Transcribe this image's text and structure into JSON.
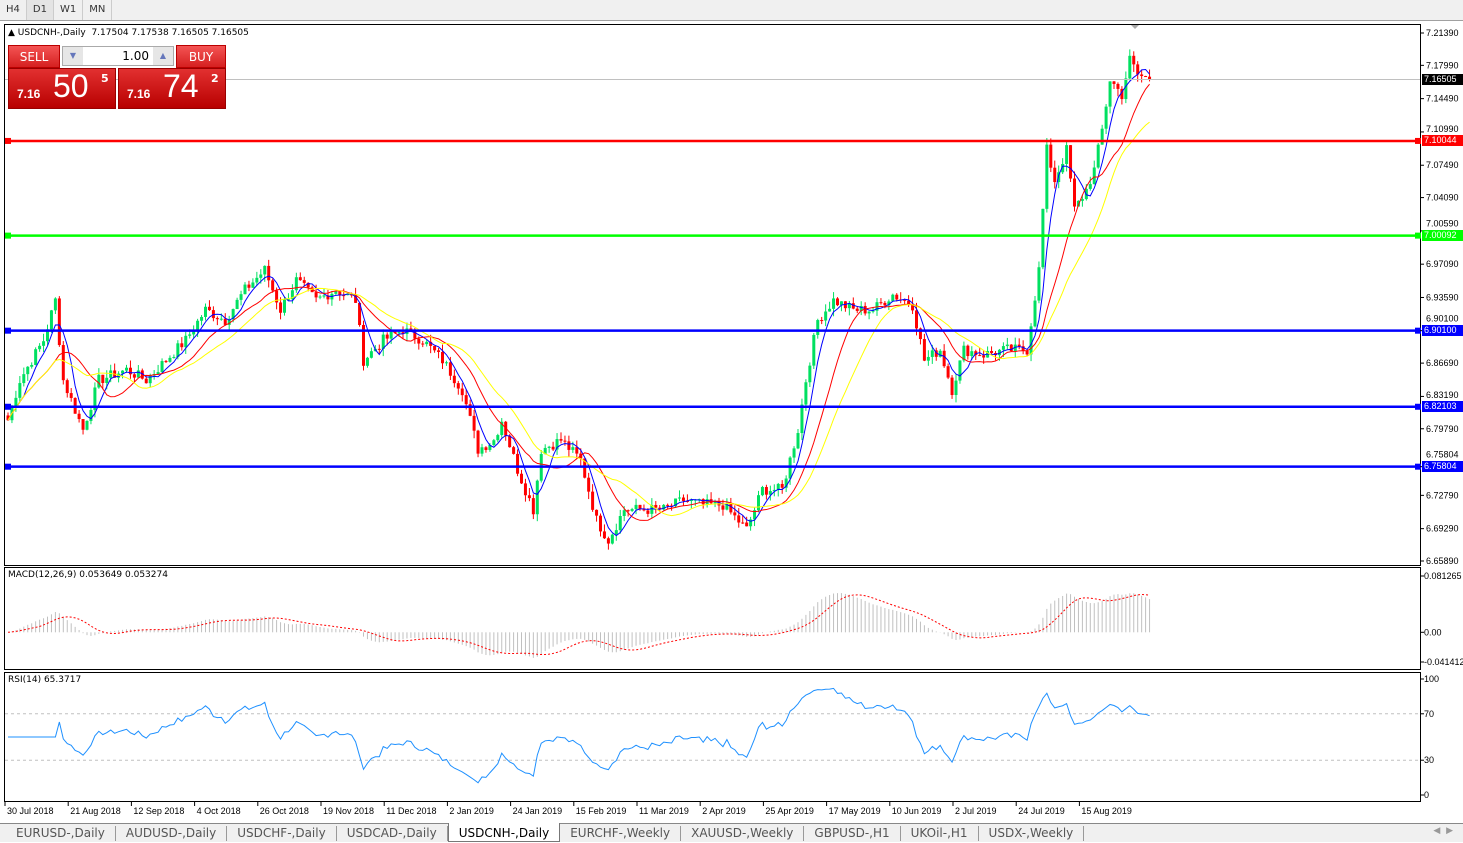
{
  "timeframes": [
    "H4",
    "D1",
    "W1",
    "MN"
  ],
  "selected_timeframe": "D1",
  "header": {
    "symbol": "USDCNH-,Daily",
    "ohlc": "7.17504 7.17538 7.16505 7.16505"
  },
  "trade_panel": {
    "sell_label": "SELL",
    "buy_label": "BUY",
    "lot": "1.00",
    "sell_price": {
      "prefix": "7.16",
      "big": "50",
      "sup": "5"
    },
    "buy_price": {
      "prefix": "7.16",
      "big": "74",
      "sup": "2"
    }
  },
  "price_axis": [
    "7.21390",
    "7.17990",
    "7.14490",
    "7.10990",
    "7.07490",
    "7.04090",
    "7.00590",
    "6.97090",
    "6.93590",
    "6.90100",
    "6.86690",
    "6.83190",
    "6.79790",
    "6.75804",
    "6.72790",
    "6.69290",
    "6.65890"
  ],
  "price_range": [
    6.6589,
    7.2139
  ],
  "current_price": "7.16505",
  "horizontal_lines": [
    {
      "price": "7.10044",
      "color": "#ff0000"
    },
    {
      "price": "7.00092",
      "color": "#00ff00"
    },
    {
      "price": "6.90100",
      "color": "#0000ff"
    },
    {
      "price": "6.82103",
      "color": "#0000ff"
    },
    {
      "price": "6.75804",
      "color": "#0000ff"
    }
  ],
  "colors": {
    "bull": "#00e060",
    "bear": "#ff0000",
    "ma_fast": "#0000ff",
    "ma_mid": "#ff0000",
    "ma_slow": "#ffff00",
    "macd_hist": "#c0c0c0",
    "macd_signal": "#ff0000",
    "rsi": "#1e90ff"
  },
  "moving_averages": [
    5,
    13,
    21
  ],
  "macd": {
    "label": "MACD(12,26,9) 0.053649 0.053274",
    "axis": [
      "0.081265",
      "0.00",
      "-0.041412"
    ],
    "range": [
      -0.041412,
      0.081265
    ]
  },
  "rsi": {
    "label": "RSI(14) 65.3717",
    "axis": [
      "100",
      "70",
      "30",
      "0"
    ],
    "levels": [
      70,
      30
    ]
  },
  "date_axis": [
    "30 Jul 2018",
    "21 Aug 2018",
    "12 Sep 2018",
    "4 Oct 2018",
    "26 Oct 2018",
    "19 Nov 2018",
    "11 Dec 2018",
    "2 Jan 2019",
    "24 Jan 2019",
    "15 Feb 2019",
    "11 Mar 2019",
    "2 Apr 2019",
    "25 Apr 2019",
    "17 May 2019",
    "10 Jun 2019",
    "2 Jul 2019",
    "24 Jul 2019",
    "15 Aug 2019"
  ],
  "chart_data": {
    "type": "candlestick",
    "bars": 290,
    "first_date": "30 Jul 2018",
    "close_anchors": [
      [
        0,
        6.807
      ],
      [
        3,
        6.849
      ],
      [
        9,
        6.891
      ],
      [
        12,
        6.933
      ],
      [
        14,
        6.849
      ],
      [
        19,
        6.797
      ],
      [
        23,
        6.849
      ],
      [
        30,
        6.86
      ],
      [
        35,
        6.849
      ],
      [
        40,
        6.87
      ],
      [
        45,
        6.891
      ],
      [
        50,
        6.923
      ],
      [
        55,
        6.912
      ],
      [
        60,
        6.944
      ],
      [
        65,
        6.965
      ],
      [
        69,
        6.923
      ],
      [
        73,
        6.954
      ],
      [
        78,
        6.933
      ],
      [
        83,
        6.944
      ],
      [
        88,
        6.933
      ],
      [
        90,
        6.87
      ],
      [
        95,
        6.891
      ],
      [
        100,
        6.902
      ],
      [
        105,
        6.891
      ],
      [
        110,
        6.87
      ],
      [
        115,
        6.839
      ],
      [
        119,
        6.776
      ],
      [
        123,
        6.786
      ],
      [
        125,
        6.807
      ],
      [
        129,
        6.755
      ],
      [
        133,
        6.713
      ],
      [
        135,
        6.776
      ],
      [
        140,
        6.786
      ],
      [
        145,
        6.765
      ],
      [
        149,
        6.702
      ],
      [
        152,
        6.681
      ],
      [
        156,
        6.713
      ],
      [
        161,
        6.713
      ],
      [
        166,
        6.713
      ],
      [
        171,
        6.723
      ],
      [
        176,
        6.718
      ],
      [
        181,
        6.718
      ],
      [
        187,
        6.692
      ],
      [
        191,
        6.734
      ],
      [
        196,
        6.734
      ],
      [
        200,
        6.797
      ],
      [
        202,
        6.849
      ],
      [
        205,
        6.912
      ],
      [
        209,
        6.933
      ],
      [
        214,
        6.923
      ],
      [
        219,
        6.923
      ],
      [
        224,
        6.939
      ],
      [
        229,
        6.928
      ],
      [
        232,
        6.87
      ],
      [
        236,
        6.881
      ],
      [
        239,
        6.839
      ],
      [
        242,
        6.881
      ],
      [
        247,
        6.876
      ],
      [
        253,
        6.881
      ],
      [
        258,
        6.881
      ],
      [
        261,
        6.965
      ],
      [
        263,
        7.091
      ],
      [
        265,
        7.059
      ],
      [
        268,
        7.091
      ],
      [
        270,
        7.028
      ],
      [
        273,
        7.049
      ],
      [
        275,
        7.07
      ],
      [
        277,
        7.112
      ],
      [
        279,
        7.165
      ],
      [
        282,
        7.149
      ],
      [
        284,
        7.186
      ],
      [
        286,
        7.17
      ],
      [
        289,
        7.165
      ]
    ]
  },
  "tabs": [
    "EURUSD-,Daily",
    "AUDUSD-,Daily",
    "USDCHF-,Daily",
    "USDCAD-,Daily",
    "USDCNH-,Daily",
    "EURCHF-,Weekly",
    "XAUUSD-,Weekly",
    "GBPUSD-,H1",
    "UKOil-,H1",
    "USDX-,Weekly"
  ],
  "active_tab": "USDCNH-,Daily",
  "tab_nav": {
    "prev": "◀",
    "next": "▶"
  }
}
